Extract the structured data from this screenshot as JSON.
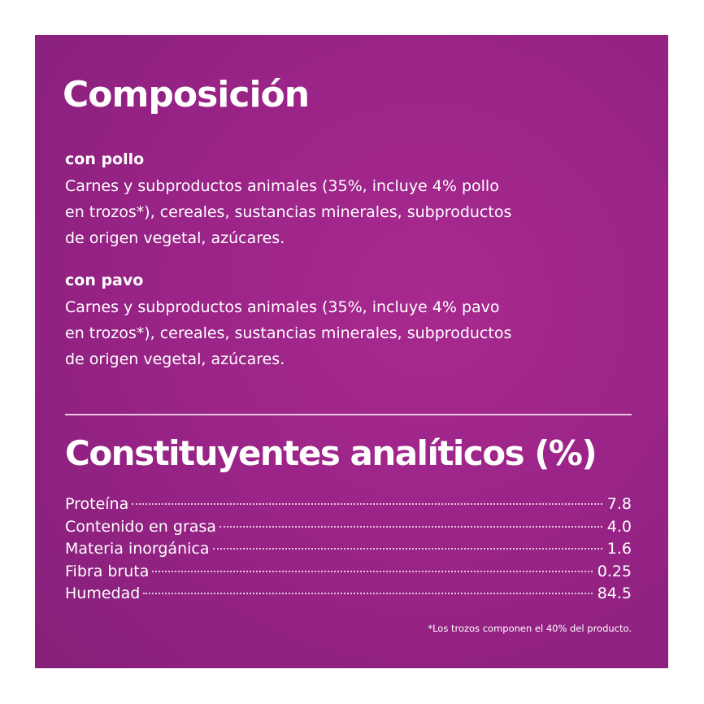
{
  "composition": {
    "title": "Composición",
    "variants": [
      {
        "name": "con pollo",
        "lines": [
          "Carnes y subproductos animales (35%, incluye 4% pollo",
          "en trozos*), cereales, sustancias minerales, subproductos",
          "de origen vegetal, azúcares."
        ]
      },
      {
        "name": "con pavo",
        "lines": [
          "Carnes y subproductos animales (35%, incluye 4% pavo",
          "en trozos*), cereales, sustancias minerales, subproductos",
          "de origen vegetal, azúcares."
        ]
      }
    ]
  },
  "analytics": {
    "title": "Constituyentes analíticos (%)",
    "rows": [
      {
        "label": "Proteína",
        "value": "7.8"
      },
      {
        "label": "Contenido en grasa",
        "value": "4.0"
      },
      {
        "label": "Materia inorgánica",
        "value": "1.6"
      },
      {
        "label": "Fibra bruta",
        "value": "0.25"
      },
      {
        "label": "Humedad",
        "value": "84.5"
      }
    ]
  },
  "footnote": "*Los trozos componen el 40% del producto.",
  "colors": {
    "panel": "#9b2488",
    "text": "#ffffff",
    "page": "#ffffff"
  }
}
